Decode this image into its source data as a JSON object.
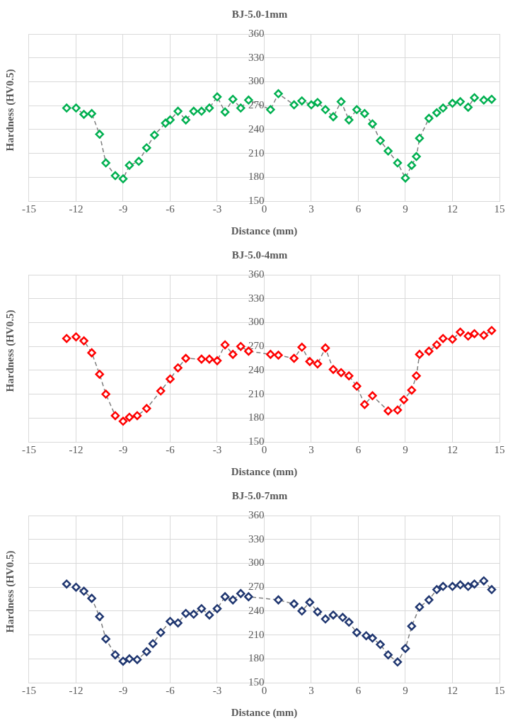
{
  "chart_data": [
    {
      "type": "line",
      "title": "BJ-5.0-1mm",
      "xlabel": "Distance (mm)",
      "ylabel": "Hardness  (HV0.5)",
      "xlim": [
        -15,
        15
      ],
      "xticks": [
        -15,
        -12,
        -9,
        -6,
        -3,
        0,
        3,
        6,
        9,
        12,
        15
      ],
      "ylim": [
        150,
        360
      ],
      "yticks": [
        150,
        180,
        210,
        240,
        270,
        300,
        330,
        360
      ],
      "grid": true,
      "marker": "diamond",
      "line_style": "dashed",
      "series": [
        {
          "color": "#00b050",
          "x": [
            -12.6,
            -12.0,
            -11.5,
            -11.0,
            -10.5,
            -10.1,
            -9.5,
            -9.0,
            -8.6,
            -8.0,
            -7.5,
            -7.0,
            -6.3,
            -6.0,
            -5.5,
            -5.0,
            -4.5,
            -4.0,
            -3.5,
            -3.0,
            -2.5,
            -2.0,
            -1.5,
            -1.0,
            0.4,
            0.9,
            1.9,
            2.4,
            3.0,
            3.4,
            3.9,
            4.4,
            4.9,
            5.4,
            5.9,
            6.4,
            6.9,
            7.4,
            7.9,
            8.5,
            9.0,
            9.4,
            9.7,
            9.9,
            10.5,
            11.0,
            11.4,
            12.0,
            12.5,
            13.0,
            13.4,
            14.0,
            14.5
          ],
          "values": [
            267,
            267,
            259,
            260,
            234,
            198,
            182,
            178,
            195,
            200,
            217,
            233,
            248,
            252,
            263,
            252,
            263,
            263,
            267,
            281,
            262,
            278,
            267,
            277,
            265,
            285,
            271,
            276,
            271,
            274,
            265,
            256,
            275,
            252,
            265,
            260,
            247,
            226,
            213,
            198,
            179,
            195,
            206,
            229,
            254,
            261,
            267,
            273,
            275,
            268,
            280,
            277,
            278
          ]
        }
      ]
    },
    {
      "type": "line",
      "title": "BJ-5.0-4mm",
      "xlabel": "Distance (mm)",
      "ylabel": "Hardness  (HV0.5)",
      "xlim": [
        -15,
        15
      ],
      "xticks": [
        -15,
        -12,
        -9,
        -6,
        -3,
        0,
        3,
        6,
        9,
        12,
        15
      ],
      "ylim": [
        150,
        360
      ],
      "yticks": [
        150,
        180,
        210,
        240,
        270,
        300,
        330,
        360
      ],
      "grid": true,
      "marker": "diamond",
      "line_style": "dashed",
      "series": [
        {
          "color": "#ff0000",
          "x": [
            -12.6,
            -12.0,
            -11.5,
            -11.0,
            -10.5,
            -10.1,
            -9.5,
            -9.0,
            -8.6,
            -8.1,
            -7.5,
            -6.6,
            -6.0,
            -5.5,
            -5.0,
            -4.0,
            -3.5,
            -3.0,
            -2.5,
            -2.0,
            -1.5,
            -1.0,
            0.4,
            0.9,
            1.9,
            2.4,
            2.9,
            3.4,
            3.9,
            4.4,
            4.9,
            5.4,
            5.9,
            6.4,
            6.9,
            7.9,
            8.5,
            8.9,
            9.4,
            9.7,
            9.9,
            10.5,
            11.0,
            11.4,
            12.0,
            12.5,
            13.0,
            13.4,
            14.0,
            14.5
          ],
          "values": [
            280,
            282,
            277,
            262,
            235,
            210,
            183,
            176,
            181,
            183,
            192,
            214,
            229,
            243,
            255,
            254,
            254,
            252,
            272,
            260,
            270,
            264,
            260,
            259,
            255,
            269,
            251,
            248,
            268,
            241,
            237,
            233,
            220,
            197,
            208,
            189,
            190,
            203,
            215,
            233,
            260,
            264,
            272,
            280,
            279,
            288,
            283,
            286,
            284,
            290
          ]
        }
      ]
    },
    {
      "type": "line",
      "title": "BJ-5.0-7mm",
      "xlabel": "Distance (mm)",
      "ylabel": "Hardness  (HV0.5)",
      "xlim": [
        -15,
        15
      ],
      "xticks": [
        -15,
        -12,
        -9,
        -6,
        -3,
        0,
        3,
        6,
        9,
        12,
        15
      ],
      "ylim": [
        150,
        360
      ],
      "yticks": [
        150,
        180,
        210,
        240,
        270,
        300,
        330,
        360
      ],
      "grid": true,
      "marker": "diamond",
      "line_style": "dashed",
      "series": [
        {
          "color": "#1f3670",
          "x": [
            -12.6,
            -12.0,
            -11.5,
            -11.0,
            -10.5,
            -10.1,
            -9.5,
            -9.0,
            -8.6,
            -8.1,
            -7.5,
            -7.1,
            -6.6,
            -6.0,
            -5.5,
            -5.0,
            -4.5,
            -4.0,
            -3.5,
            -3.0,
            -2.5,
            -2.0,
            -1.5,
            -1.0,
            0.9,
            1.9,
            2.4,
            2.9,
            3.4,
            3.9,
            4.4,
            5.0,
            5.4,
            5.9,
            6.5,
            6.9,
            7.4,
            7.9,
            8.5,
            9.0,
            9.4,
            9.9,
            10.5,
            11.0,
            11.4,
            12.0,
            12.5,
            13.0,
            13.4,
            14.0,
            14.5
          ],
          "values": [
            274,
            270,
            265,
            256,
            233,
            205,
            185,
            177,
            180,
            179,
            189,
            199,
            213,
            227,
            225,
            237,
            236,
            243,
            235,
            243,
            258,
            254,
            262,
            258,
            254,
            249,
            240,
            251,
            239,
            230,
            235,
            232,
            226,
            213,
            209,
            206,
            198,
            185,
            176,
            193,
            221,
            245,
            254,
            267,
            271,
            271,
            273,
            271,
            274,
            278,
            267
          ]
        }
      ]
    }
  ]
}
